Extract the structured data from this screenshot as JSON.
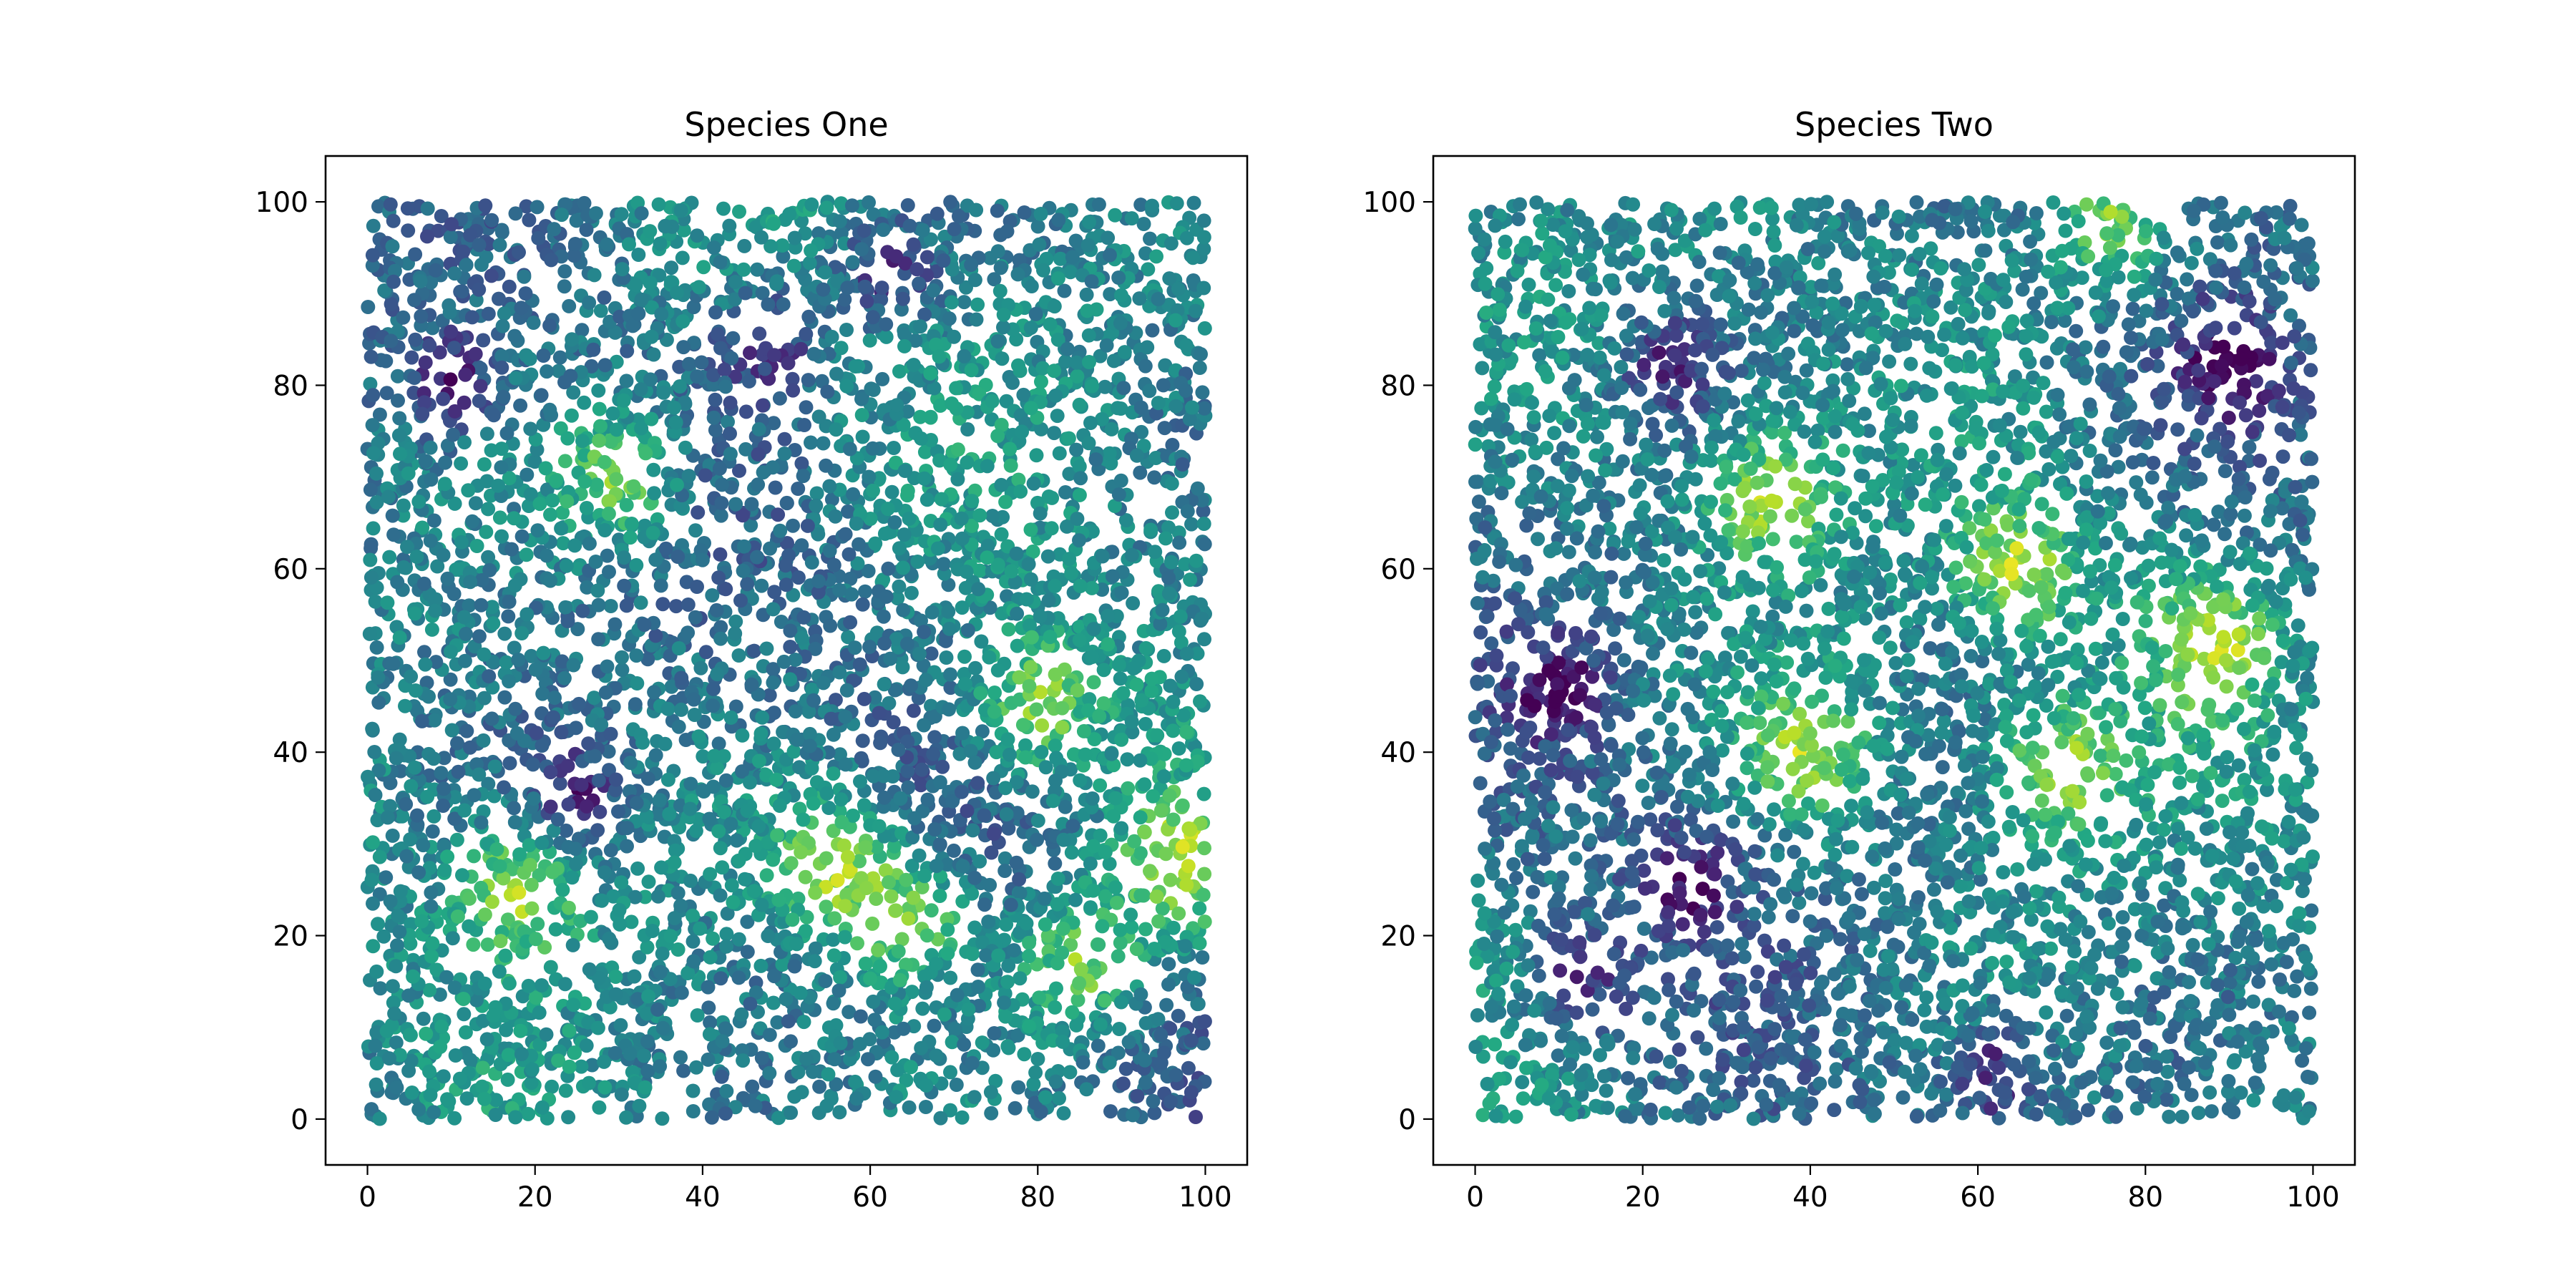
{
  "chart_data": [
    {
      "type": "scatter",
      "title": "Species One",
      "xlabel": "",
      "ylabel": "",
      "xlim": [
        -5,
        105
      ],
      "ylim": [
        -5,
        105
      ],
      "xticks": [
        0,
        20,
        40,
        60,
        80,
        100
      ],
      "yticks": [
        0,
        20,
        40,
        60,
        80,
        100
      ],
      "grid": false,
      "colormap": "viridis",
      "point_count": 5000,
      "points": {
        "x_range": [
          0,
          100
        ],
        "y_range": [
          0,
          100
        ],
        "color_value_range": [
          0,
          1
        ],
        "bright_clusters": [
          {
            "x": 30,
            "y": 70
          },
          {
            "x": 55,
            "y": 28
          },
          {
            "x": 65,
            "y": 22
          },
          {
            "x": 85,
            "y": 17
          },
          {
            "x": 97,
            "y": 28
          },
          {
            "x": 18,
            "y": 25
          },
          {
            "x": 80,
            "y": 45
          }
        ],
        "dark_clusters": [
          {
            "x": 48,
            "y": 85
          },
          {
            "x": 62,
            "y": 92
          },
          {
            "x": 25,
            "y": 35
          },
          {
            "x": 10,
            "y": 80
          }
        ]
      }
    },
    {
      "type": "scatter",
      "title": "Species Two",
      "xlabel": "",
      "ylabel": "",
      "xlim": [
        -5,
        105
      ],
      "ylim": [
        -5,
        105
      ],
      "xticks": [
        0,
        20,
        40,
        60,
        80,
        100
      ],
      "yticks": [
        0,
        20,
        40,
        60,
        80,
        100
      ],
      "grid": false,
      "colormap": "viridis",
      "point_count": 5000,
      "points": {
        "x_range": [
          0,
          100
        ],
        "y_range": [
          0,
          100
        ],
        "color_value_range": [
          0,
          1
        ],
        "bright_clusters": [
          {
            "x": 76,
            "y": 98
          },
          {
            "x": 70,
            "y": 38
          },
          {
            "x": 88,
            "y": 52
          },
          {
            "x": 40,
            "y": 40
          },
          {
            "x": 65,
            "y": 60
          },
          {
            "x": 35,
            "y": 68
          }
        ],
        "dark_clusters": [
          {
            "x": 25,
            "y": 26
          },
          {
            "x": 12,
            "y": 15
          },
          {
            "x": 10,
            "y": 47
          },
          {
            "x": 62,
            "y": 5
          },
          {
            "x": 90,
            "y": 82
          },
          {
            "x": 23,
            "y": 82
          }
        ]
      }
    }
  ]
}
